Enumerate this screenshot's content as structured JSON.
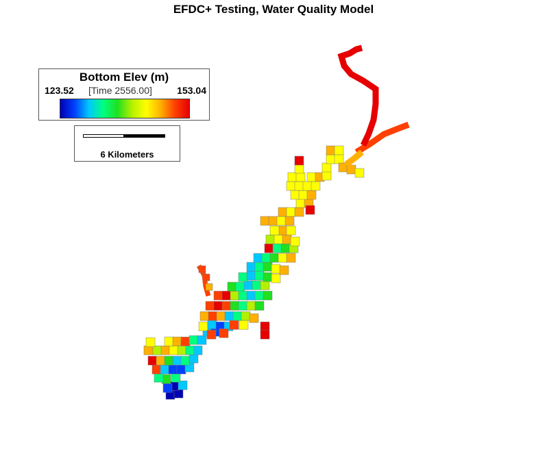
{
  "title": "EFDC+ Testing, Water Quality Model",
  "legend": {
    "title": "Bottom Elev (m)",
    "min": "123.52",
    "max": "153.04",
    "time": "[Time 2556.00]",
    "colormap": [
      "#0000b4",
      "#0040ff",
      "#00c8ff",
      "#00ff80",
      "#20e020",
      "#b4f000",
      "#ffff00",
      "#ffb000",
      "#ff4000",
      "#e60000"
    ]
  },
  "scale_bar": {
    "label": "6 Kilometers"
  }
}
